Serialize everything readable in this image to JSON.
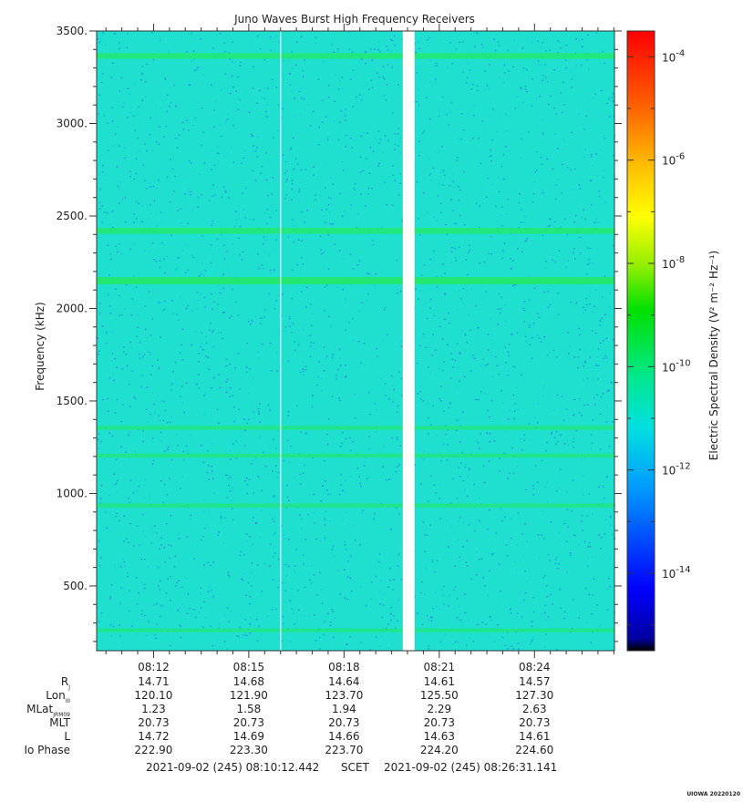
{
  "chart_data": {
    "type": "heatmap",
    "title": "Juno Waves Burst High Frequency Receivers",
    "ylabel": "Frequency (kHz)",
    "colorbar_label": "Electric Spectral Density (V² m⁻² Hz⁻¹)",
    "ylim": [
      150,
      3500
    ],
    "y_ticks": [
      {
        "value": 500,
        "label": "500."
      },
      {
        "value": 1000,
        "label": "1000."
      },
      {
        "value": 1500,
        "label": "1500."
      },
      {
        "value": 2000,
        "label": "2000."
      },
      {
        "value": 2500,
        "label": "2500."
      },
      {
        "value": 3000,
        "label": "3000."
      },
      {
        "value": 3500,
        "label": "3500."
      }
    ],
    "x_start_min": 610.207,
    "x_end_min": 626.519,
    "x_ticks": [
      {
        "value_min": 612,
        "label": "08:12"
      },
      {
        "value_min": 615,
        "label": "08:15"
      },
      {
        "value_min": 618,
        "label": "08:18"
      },
      {
        "value_min": 621,
        "label": "08:21"
      },
      {
        "value_min": 624,
        "label": "08:24"
      }
    ],
    "colorbar_range_log10": [
      -15.5,
      -3.5
    ],
    "colorbar_ticks": [
      {
        "exp": -4,
        "base": "10",
        "sup": "-4"
      },
      {
        "exp": -6,
        "base": "10",
        "sup": "-6"
      },
      {
        "exp": -8,
        "base": "10",
        "sup": "-8"
      },
      {
        "exp": -10,
        "base": "10",
        "sup": "-10"
      },
      {
        "exp": -12,
        "base": "10",
        "sup": "-12"
      },
      {
        "exp": -14,
        "base": "10",
        "sup": "-14"
      }
    ],
    "background_log10_psd": -11.7,
    "emission_lines": [
      {
        "freq_khz": 3365,
        "log10_psd": -10.4
      },
      {
        "freq_khz": 2420,
        "log10_psd": -10.3
      },
      {
        "freq_khz": 2150,
        "log10_psd": -9.9
      },
      {
        "freq_khz": 1355,
        "log10_psd": -11.0
      },
      {
        "freq_khz": 1205,
        "log10_psd": -11.0
      },
      {
        "freq_khz": 935,
        "log10_psd": -11.0
      },
      {
        "freq_khz": 260,
        "log10_psd": -11.2
      }
    ],
    "data_gap_minutes": [
      619.85,
      620.22
    ],
    "thin_gap_minute": 616.0,
    "colors": {
      "background": "#1fe0cf",
      "noise": "#1e7fe0",
      "line": "#22e86a",
      "gap": "#ffffff"
    }
  },
  "ephemeris": {
    "rows": [
      {
        "label_main": "R",
        "label_sub": "J",
        "label_sup": "",
        "values": [
          "14.71",
          "14.68",
          "14.64",
          "14.61",
          "14.57"
        ]
      },
      {
        "label_main": "Lon",
        "label_sub": "III",
        "label_sup": "",
        "values": [
          "120.10",
          "121.90",
          "123.70",
          "125.50",
          "127.30"
        ]
      },
      {
        "label_main": "MLat",
        "label_sub": "JRM09",
        "label_sup": "",
        "values": [
          "1.23",
          "1.58",
          "1.94",
          "2.29",
          "2.63"
        ]
      },
      {
        "label_main": "MLT",
        "label_sub": "",
        "label_sup": "",
        "values": [
          "20.73",
          "20.73",
          "20.73",
          "20.73",
          "20.73"
        ]
      },
      {
        "label_main": "L",
        "label_sub": "",
        "label_sup": "",
        "values": [
          "14.72",
          "14.69",
          "14.66",
          "14.63",
          "14.61"
        ]
      },
      {
        "label_main": "Io Phase",
        "label_sub": "",
        "label_sup": "",
        "values": [
          "222.90",
          "223.30",
          "223.70",
          "224.20",
          "224.60"
        ]
      }
    ]
  },
  "footer": {
    "start_time": "2021-09-02 (245) 08:10:12.442",
    "frame": "SCET",
    "end_time": "2021-09-02 (245) 08:26:31.141",
    "credit": "UIOWA 20220120"
  }
}
